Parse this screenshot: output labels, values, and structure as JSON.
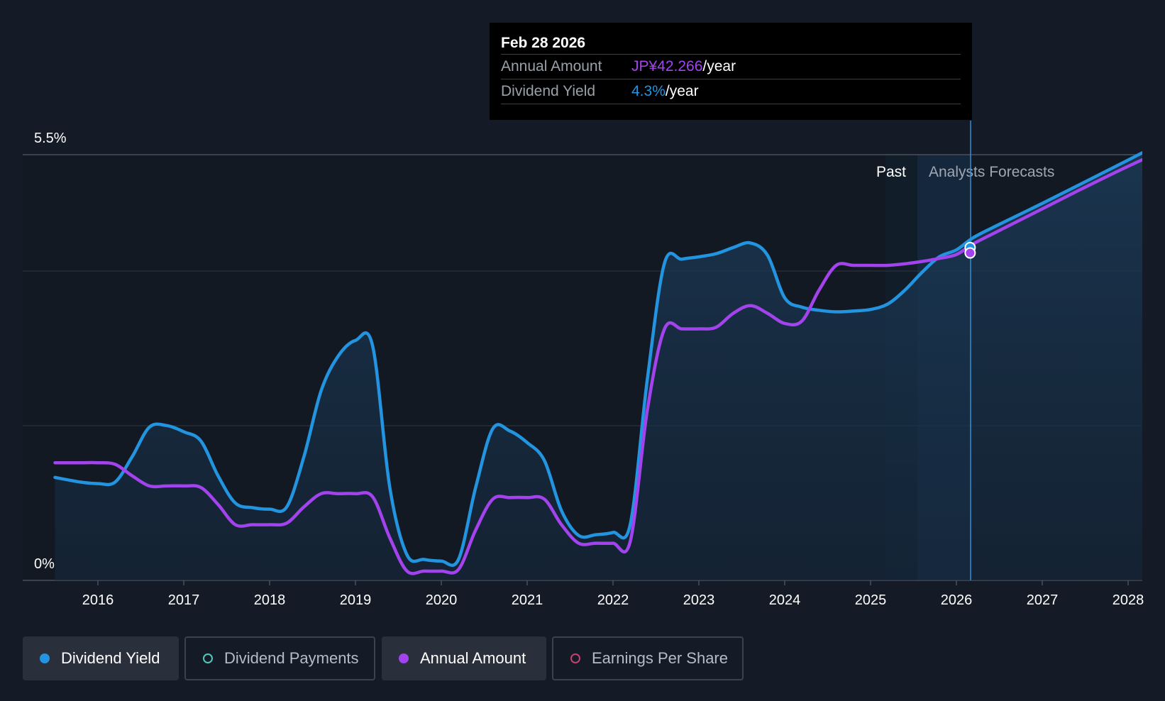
{
  "chart_data": {
    "type": "line",
    "x_ticks": [
      "2016",
      "2017",
      "2018",
      "2019",
      "2020",
      "2021",
      "2022",
      "2023",
      "2024",
      "2025",
      "2026",
      "2027",
      "2028"
    ],
    "y_labels": {
      "top": "5.5%",
      "bottom": "0%"
    },
    "ylim": [
      0,
      5.5
    ],
    "xlim": [
      2015.0,
      2028.3
    ],
    "regions": {
      "past": "Past",
      "forecast": "Analysts Forecasts"
    },
    "series": [
      {
        "name": "Dividend Yield",
        "color": "#2394df",
        "points": [
          [
            2015.5,
            1.33
          ],
          [
            2015.8,
            1.27
          ],
          [
            2016.0,
            1.25
          ],
          [
            2016.2,
            1.27
          ],
          [
            2016.4,
            1.6
          ],
          [
            2016.6,
            1.98
          ],
          [
            2016.8,
            2.0
          ],
          [
            2017.0,
            1.92
          ],
          [
            2017.2,
            1.8
          ],
          [
            2017.4,
            1.35
          ],
          [
            2017.6,
            1.0
          ],
          [
            2017.8,
            0.94
          ],
          [
            2018.0,
            0.92
          ],
          [
            2018.2,
            0.95
          ],
          [
            2018.4,
            1.6
          ],
          [
            2018.6,
            2.45
          ],
          [
            2018.8,
            2.9
          ],
          [
            2019.0,
            3.1
          ],
          [
            2019.2,
            3.03
          ],
          [
            2019.4,
            1.2
          ],
          [
            2019.6,
            0.33
          ],
          [
            2019.8,
            0.27
          ],
          [
            2020.0,
            0.25
          ],
          [
            2020.2,
            0.27
          ],
          [
            2020.4,
            1.2
          ],
          [
            2020.6,
            1.96
          ],
          [
            2020.8,
            1.93
          ],
          [
            2021.0,
            1.78
          ],
          [
            2021.2,
            1.55
          ],
          [
            2021.4,
            0.9
          ],
          [
            2021.6,
            0.58
          ],
          [
            2021.8,
            0.59
          ],
          [
            2022.0,
            0.62
          ],
          [
            2022.2,
            0.72
          ],
          [
            2022.4,
            2.6
          ],
          [
            2022.6,
            4.1
          ],
          [
            2022.8,
            4.15
          ],
          [
            2023.0,
            4.18
          ],
          [
            2023.2,
            4.22
          ],
          [
            2023.4,
            4.3
          ],
          [
            2023.6,
            4.36
          ],
          [
            2023.8,
            4.2
          ],
          [
            2024.0,
            3.65
          ],
          [
            2024.2,
            3.53
          ],
          [
            2024.4,
            3.49
          ],
          [
            2024.6,
            3.47
          ],
          [
            2024.8,
            3.48
          ],
          [
            2025.0,
            3.5
          ],
          [
            2025.2,
            3.57
          ],
          [
            2025.4,
            3.75
          ],
          [
            2025.6,
            3.98
          ],
          [
            2025.8,
            4.18
          ],
          [
            2026.0,
            4.27
          ],
          [
            2026.2,
            4.43
          ],
          [
            2026.5,
            4.6
          ],
          [
            2027.0,
            4.87
          ],
          [
            2027.5,
            5.15
          ],
          [
            2028.0,
            5.43
          ],
          [
            2028.3,
            5.6
          ]
        ]
      },
      {
        "name": "Annual Amount",
        "color": "#a243ed",
        "points": [
          [
            2015.5,
            1.52
          ],
          [
            2015.8,
            1.52
          ],
          [
            2016.0,
            1.52
          ],
          [
            2016.2,
            1.5
          ],
          [
            2016.4,
            1.35
          ],
          [
            2016.6,
            1.22
          ],
          [
            2016.8,
            1.22
          ],
          [
            2017.0,
            1.22
          ],
          [
            2017.2,
            1.2
          ],
          [
            2017.4,
            0.98
          ],
          [
            2017.6,
            0.72
          ],
          [
            2017.8,
            0.72
          ],
          [
            2018.0,
            0.72
          ],
          [
            2018.2,
            0.74
          ],
          [
            2018.4,
            0.95
          ],
          [
            2018.6,
            1.12
          ],
          [
            2018.8,
            1.12
          ],
          [
            2019.0,
            1.12
          ],
          [
            2019.2,
            1.08
          ],
          [
            2019.4,
            0.55
          ],
          [
            2019.6,
            0.12
          ],
          [
            2019.8,
            0.12
          ],
          [
            2020.0,
            0.12
          ],
          [
            2020.2,
            0.14
          ],
          [
            2020.4,
            0.65
          ],
          [
            2020.6,
            1.05
          ],
          [
            2020.8,
            1.07
          ],
          [
            2021.0,
            1.07
          ],
          [
            2021.2,
            1.05
          ],
          [
            2021.4,
            0.72
          ],
          [
            2021.6,
            0.48
          ],
          [
            2021.8,
            0.48
          ],
          [
            2022.0,
            0.48
          ],
          [
            2022.2,
            0.5
          ],
          [
            2022.4,
            2.2
          ],
          [
            2022.6,
            3.25
          ],
          [
            2022.8,
            3.25
          ],
          [
            2023.0,
            3.25
          ],
          [
            2023.2,
            3.27
          ],
          [
            2023.4,
            3.45
          ],
          [
            2023.6,
            3.55
          ],
          [
            2023.8,
            3.45
          ],
          [
            2024.0,
            3.32
          ],
          [
            2024.2,
            3.35
          ],
          [
            2024.4,
            3.75
          ],
          [
            2024.6,
            4.07
          ],
          [
            2024.8,
            4.07
          ],
          [
            2025.0,
            4.07
          ],
          [
            2025.2,
            4.07
          ],
          [
            2025.4,
            4.09
          ],
          [
            2025.6,
            4.12
          ],
          [
            2025.8,
            4.16
          ],
          [
            2026.0,
            4.21
          ],
          [
            2026.2,
            4.35
          ],
          [
            2026.5,
            4.52
          ],
          [
            2027.0,
            4.8
          ],
          [
            2027.5,
            5.08
          ],
          [
            2028.0,
            5.35
          ],
          [
            2028.3,
            5.5
          ]
        ]
      }
    ],
    "marker_x": 2026.16,
    "markers": [
      {
        "series": "Dividend Yield",
        "y": 4.3
      },
      {
        "series": "Annual Amount",
        "y": 4.23
      }
    ]
  },
  "tooltip": {
    "date": "Feb 28 2026",
    "rows": [
      {
        "label": "Annual Amount",
        "value": "JP¥42.266",
        "suffix": "/year",
        "color": "#a243ed"
      },
      {
        "label": "Dividend Yield",
        "value": "4.3%",
        "suffix": "/year",
        "color": "#2394df"
      }
    ]
  },
  "legend": [
    {
      "label": "Dividend Yield",
      "color": "#2394df",
      "filled": true,
      "active": true
    },
    {
      "label": "Dividend Payments",
      "color": "#4fc9b8",
      "filled": false,
      "active": false
    },
    {
      "label": "Annual Amount",
      "color": "#a243ed",
      "filled": true,
      "active": true
    },
    {
      "label": "Earnings Per Share",
      "color": "#c2436f",
      "filled": false,
      "active": false
    }
  ]
}
